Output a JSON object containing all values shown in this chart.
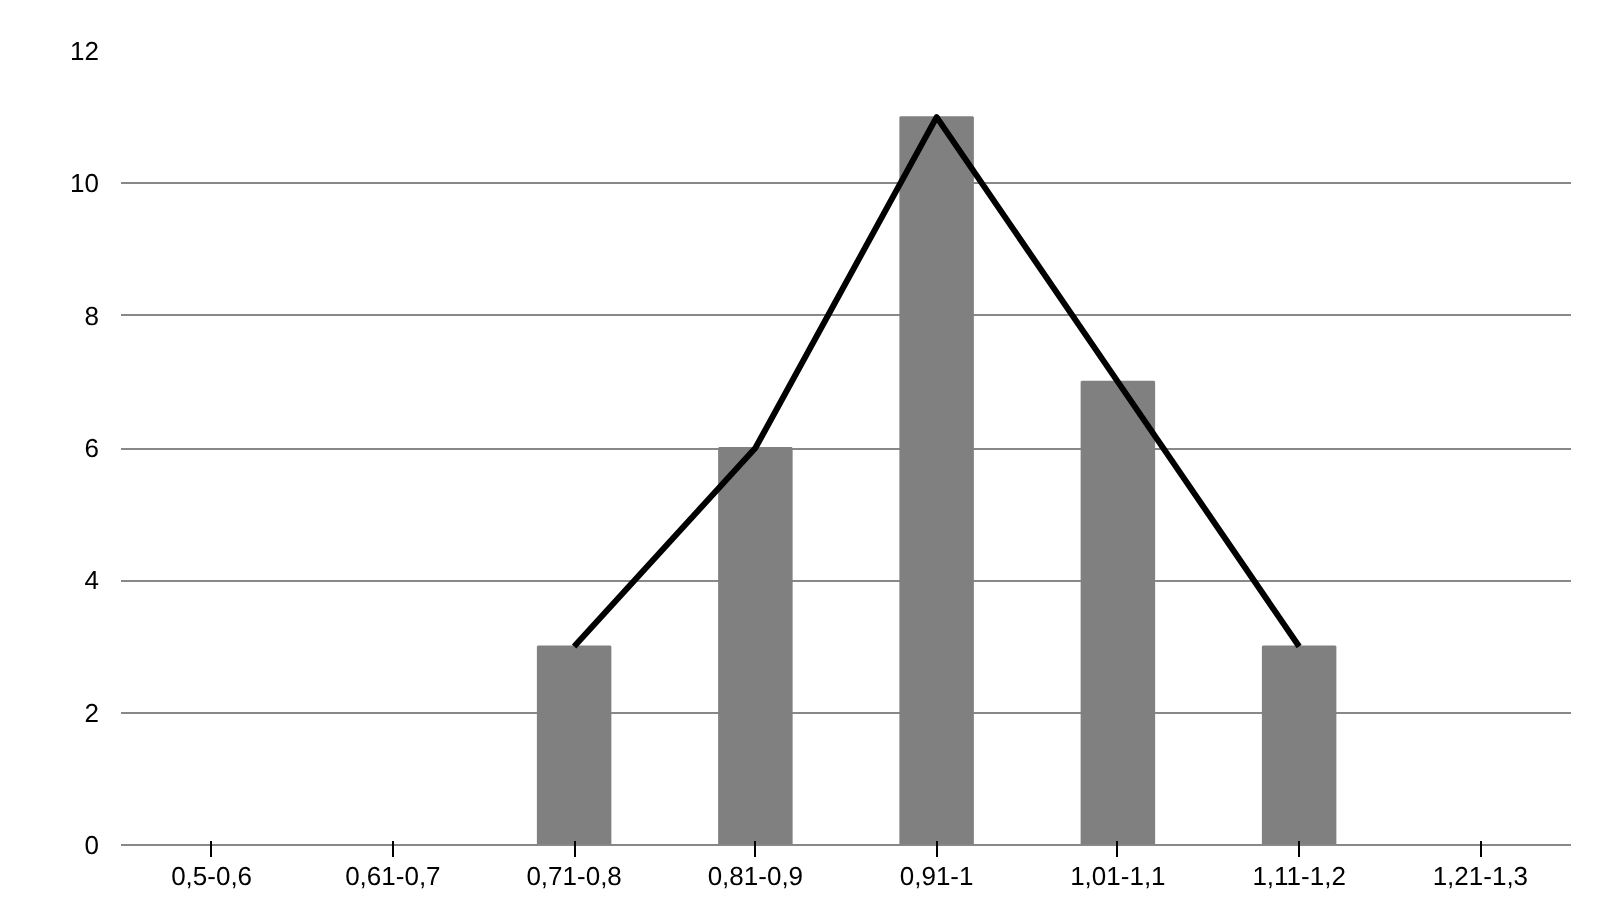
{
  "chart_data": {
    "type": "bar",
    "categories": [
      "0,5-0,6",
      "0,61-0,7",
      "0,71-0,8",
      "0,81-0,9",
      "0,91-1",
      "1,01-1,1",
      "1,11-1,2",
      "1,21-1,3"
    ],
    "series": [
      {
        "color": "#808080",
        "values": [
          0,
          0,
          3,
          6,
          11,
          7,
          3,
          0
        ]
      },
      {
        "type": "line",
        "color": "#000000",
        "values": [
          null,
          null,
          3,
          6,
          11,
          7,
          3,
          null
        ]
      }
    ],
    "ylim": [
      0,
      12
    ],
    "yticks": [
      0,
      2,
      4,
      6,
      8,
      10,
      12
    ],
    "grid": "y"
  }
}
